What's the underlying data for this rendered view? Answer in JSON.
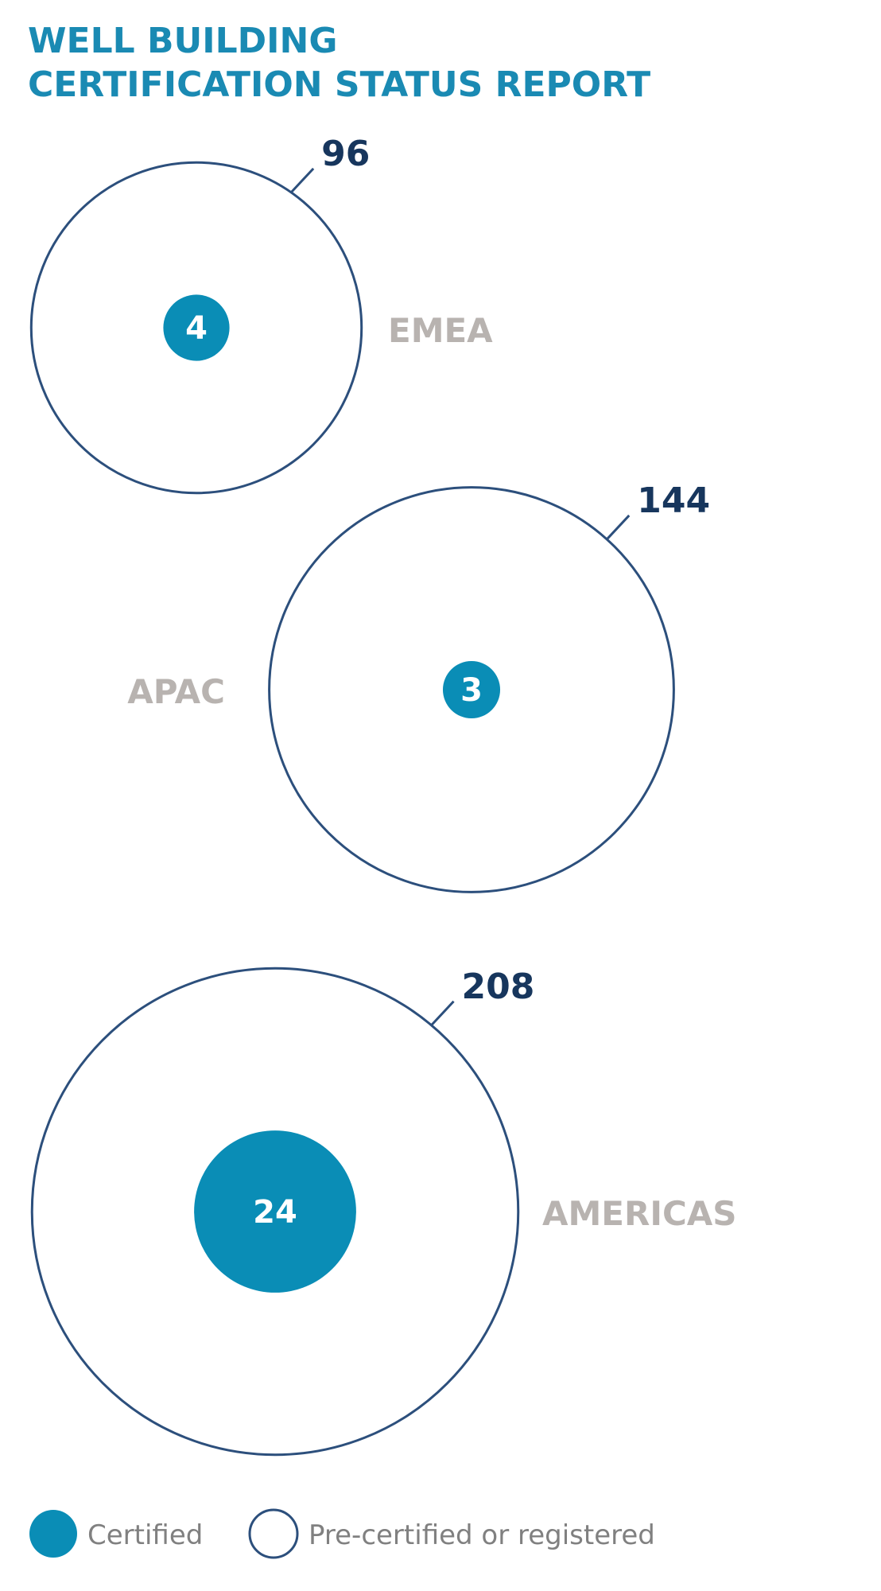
{
  "chart_data": {
    "type": "bubble",
    "title_lines": [
      "WELL BUILDING",
      "CERTIFICATION STATUS REPORT"
    ],
    "categories": [
      "EMEA",
      "APAC",
      "AMERICAS"
    ],
    "series": [
      {
        "name": "Pre-certified or registered",
        "values": [
          96,
          144,
          208
        ]
      },
      {
        "name": "Certified",
        "values": [
          4,
          3,
          24
        ]
      }
    ],
    "legend": {
      "placement": "bottom-left",
      "items": [
        "Certified",
        "Pre-certified or registered"
      ]
    }
  },
  "colors": {
    "title": "#1a8ab3",
    "certified_fill": "#0a8db6",
    "outline": "#2c4f7c",
    "value_label": "#17365d",
    "region_label": "#b8b3b0",
    "legend_text": "#808080",
    "inner_label": "#ffffff"
  }
}
